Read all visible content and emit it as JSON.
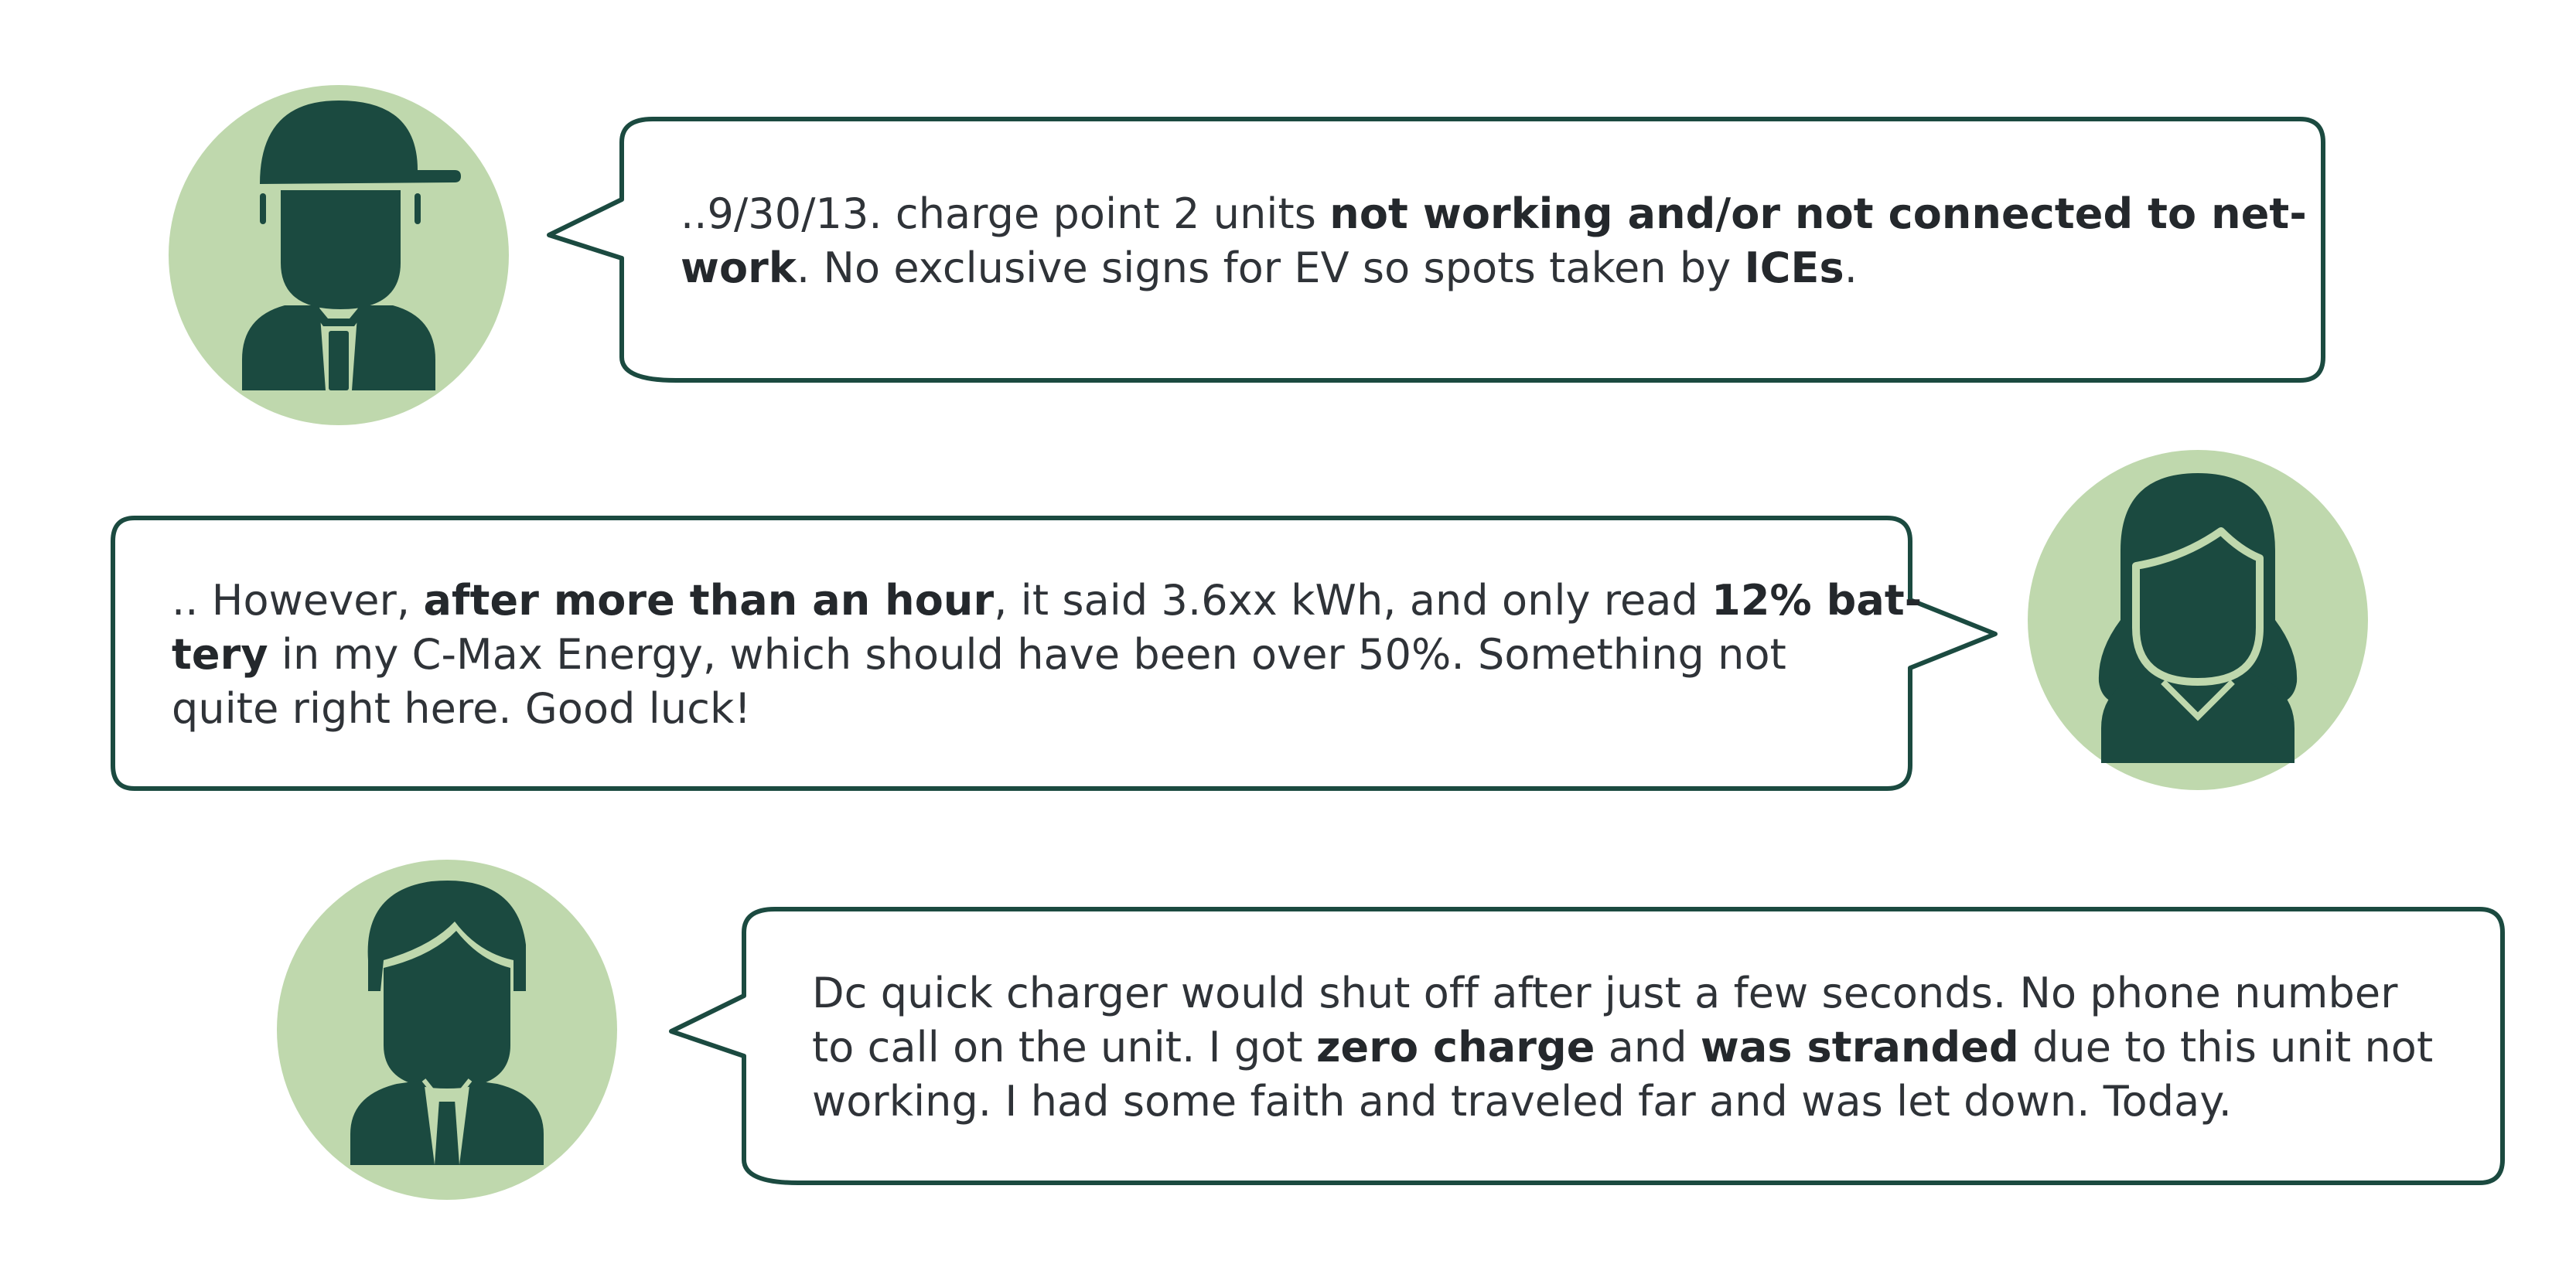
{
  "colors": {
    "avatar_bg": "#bfd8ad",
    "avatar_fg": "#1b4a40",
    "bubble_border": "#1b4a40",
    "text": "#2f3338"
  },
  "testimonials": [
    {
      "avatar": "worker-cap-icon",
      "lines": [
        [
          {
            "text": "..9/30/13. charge point 2 units ",
            "bold": false
          },
          {
            "text": "not working and/or not connected to net-",
            "bold": true
          }
        ],
        [
          {
            "text": "work",
            "bold": true
          },
          {
            "text": ". No exclusive signs for EV so spots taken by ",
            "bold": false
          },
          {
            "text": "ICEs",
            "bold": true
          },
          {
            "text": ".",
            "bold": false
          }
        ]
      ]
    },
    {
      "avatar": "woman-icon",
      "lines": [
        [
          {
            "text": ".. However, ",
            "bold": false
          },
          {
            "text": "after more than an hour",
            "bold": true
          },
          {
            "text": ", it said 3.6xx kWh, and only read ",
            "bold": false
          },
          {
            "text": "12% bat-",
            "bold": true
          }
        ],
        [
          {
            "text": "tery",
            "bold": true
          },
          {
            "text": " in my C-Max Energy, which should have been over 50%. Something not",
            "bold": false
          }
        ],
        [
          {
            "text": "quite right here. Good luck!",
            "bold": false
          }
        ]
      ]
    },
    {
      "avatar": "businessman-icon",
      "lines": [
        [
          {
            "text": "Dc quick charger would shut off after just a few seconds. No phone number",
            "bold": false
          }
        ],
        [
          {
            "text": "to call on the unit. I got ",
            "bold": false
          },
          {
            "text": "zero charge",
            "bold": true
          },
          {
            "text": " and ",
            "bold": false
          },
          {
            "text": "was stranded",
            "bold": true
          },
          {
            "text": " due to this unit not",
            "bold": false
          }
        ],
        [
          {
            "text": "working. I had some faith and traveled far and was let down. Today.",
            "bold": false
          }
        ]
      ]
    }
  ]
}
